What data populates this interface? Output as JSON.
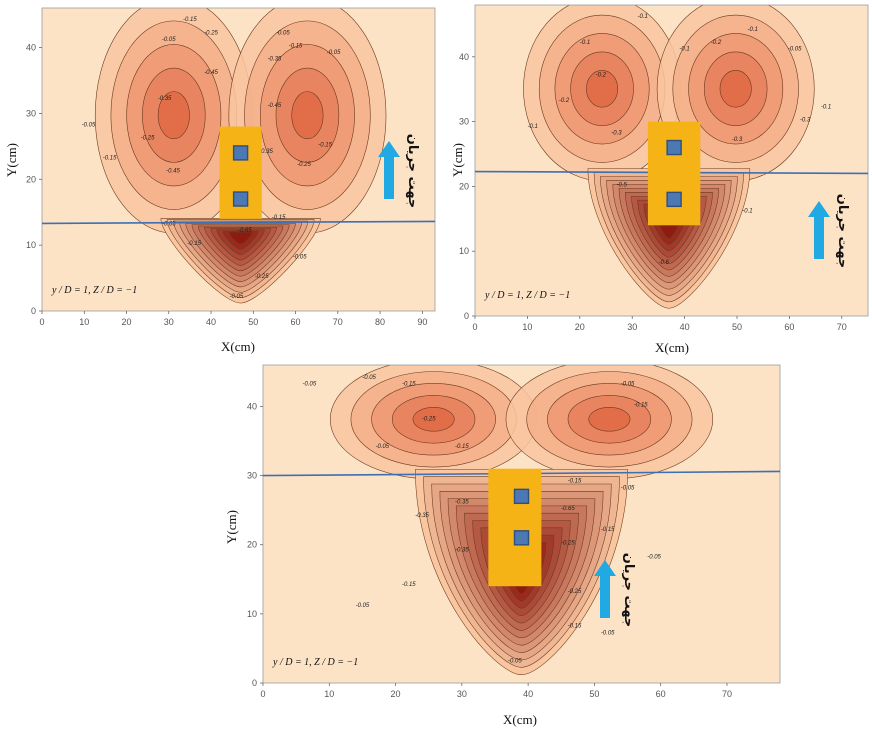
{
  "colors": {
    "background": "#fde3c6",
    "contour_line": "#6a3a1e",
    "level_line": "#3d6fb3",
    "pier": "#f6b316",
    "pier_square": "#4c78b4",
    "arrow": "#21a9e3",
    "scale_light": "#f9c6a0",
    "scale_dark": "#8e1b0f"
  },
  "chart_data": [
    {
      "type": "contour",
      "xlabel": "X(cm)",
      "ylabel": "Y(cm)",
      "xlim": [
        0,
        93
      ],
      "ylim": [
        0,
        46
      ],
      "xticks": [
        "0",
        "10",
        "20",
        "30",
        "40",
        "50",
        "60",
        "70",
        "80",
        "90"
      ],
      "yticks": [
        "0",
        "10",
        "20",
        "30",
        "40"
      ],
      "annotation": "y / D = 1, Z / D = −1",
      "flow_label": "جهت جریان",
      "level_line_y": [
        13.3,
        13.6
      ],
      "pier": {
        "x": [
          42,
          52
        ],
        "y": [
          14,
          28
        ]
      },
      "squares": [
        [
          47,
          24
        ],
        [
          47,
          17
        ]
      ],
      "deep_center": [
        47,
        11
      ],
      "contour_labels": [
        {
          "text": "-0.05",
          "x": 11,
          "y": 28
        },
        {
          "text": "-0.15",
          "x": 16,
          "y": 23
        },
        {
          "text": "-0.25",
          "x": 25,
          "y": 26
        },
        {
          "text": "-0.35",
          "x": 29,
          "y": 32
        },
        {
          "text": "-0.25",
          "x": 40,
          "y": 42
        },
        {
          "text": "-0.05",
          "x": 30,
          "y": 41
        },
        {
          "text": "-0.15",
          "x": 35,
          "y": 44
        },
        {
          "text": "-0.35",
          "x": 55,
          "y": 38
        },
        {
          "text": "-0.45",
          "x": 40,
          "y": 36
        },
        {
          "text": "-0.45",
          "x": 55,
          "y": 31
        },
        {
          "text": "-0.35",
          "x": 53,
          "y": 24
        },
        {
          "text": "-0.45",
          "x": 31,
          "y": 21
        },
        {
          "text": "-0.25",
          "x": 62,
          "y": 22
        },
        {
          "text": "-0.15",
          "x": 67,
          "y": 25
        },
        {
          "text": "-0.05",
          "x": 57,
          "y": 42
        },
        {
          "text": "-0.15",
          "x": 60,
          "y": 40
        },
        {
          "text": "-0.05",
          "x": 69,
          "y": 39
        },
        {
          "text": "-0.15",
          "x": 56,
          "y": 14
        },
        {
          "text": "-0.05",
          "x": 30,
          "y": 13
        },
        {
          "text": "-0.15",
          "x": 36,
          "y": 10
        },
        {
          "text": "-0.65",
          "x": 48,
          "y": 12
        },
        {
          "text": "-0.05",
          "x": 61,
          "y": 8
        },
        {
          "text": "-0.25",
          "x": 52,
          "y": 5
        },
        {
          "text": "-0.05",
          "x": 46,
          "y": 2
        }
      ]
    },
    {
      "type": "contour",
      "xlabel": "X(cm)",
      "ylabel": "Y(cm)",
      "xlim": [
        0,
        75
      ],
      "ylim": [
        0,
        48
      ],
      "xticks": [
        "0",
        "10",
        "20",
        "30",
        "40",
        "50",
        "60",
        "70"
      ],
      "yticks": [
        "0",
        "10",
        "20",
        "30",
        "40"
      ],
      "annotation": "y / D = 1, Z / D = −1",
      "flow_label": "جهت جریان",
      "level_line_y": [
        22.3,
        22.0
      ],
      "pier": {
        "x": [
          33,
          43
        ],
        "y": [
          14,
          30
        ]
      },
      "squares": [
        [
          38,
          26
        ],
        [
          38,
          18
        ]
      ],
      "deep_center": [
        37,
        13
      ],
      "contour_labels": [
        {
          "text": "-0.1",
          "x": 11,
          "y": 29
        },
        {
          "text": "-0.2",
          "x": 17,
          "y": 33
        },
        {
          "text": "-0.1",
          "x": 21,
          "y": 42
        },
        {
          "text": "-0.2",
          "x": 24,
          "y": 37
        },
        {
          "text": "-0.3",
          "x": 27,
          "y": 28
        },
        {
          "text": "-0.1",
          "x": 32,
          "y": 46
        },
        {
          "text": "-0.1",
          "x": 40,
          "y": 41
        },
        {
          "text": "-0.2",
          "x": 46,
          "y": 42
        },
        {
          "text": "-0.1",
          "x": 53,
          "y": 44
        },
        {
          "text": "-0.05",
          "x": 61,
          "y": 41
        },
        {
          "text": "-0.1",
          "x": 67,
          "y": 32
        },
        {
          "text": "-0.3",
          "x": 63,
          "y": 30
        },
        {
          "text": "-0.3",
          "x": 50,
          "y": 27
        },
        {
          "text": "-0.1",
          "x": 52,
          "y": 16
        },
        {
          "text": "-0.6",
          "x": 36,
          "y": 8
        },
        {
          "text": "-0.5",
          "x": 28,
          "y": 20
        }
      ]
    },
    {
      "type": "contour",
      "xlabel": "X(cm)",
      "ylabel": "Y(cm)",
      "xlim": [
        0,
        78
      ],
      "ylim": [
        0,
        46
      ],
      "xticks": [
        "0",
        "10",
        "20",
        "30",
        "40",
        "50",
        "60",
        "70"
      ],
      "yticks": [
        "0",
        "10",
        "20",
        "30",
        "40"
      ],
      "annotation": "y / D = 1, Z / D = −1",
      "flow_label": "جهت جریان",
      "level_line_y": [
        30.0,
        30.6
      ],
      "pier": {
        "x": [
          34,
          42
        ],
        "y": [
          14,
          31
        ]
      },
      "squares": [
        [
          39,
          27
        ],
        [
          39,
          21
        ]
      ],
      "deep_center": [
        39,
        14
      ],
      "contour_labels": [
        {
          "text": "-0.05",
          "x": 7,
          "y": 43
        },
        {
          "text": "-0.05",
          "x": 16,
          "y": 44
        },
        {
          "text": "-0.15",
          "x": 22,
          "y": 43
        },
        {
          "text": "-0.25",
          "x": 25,
          "y": 38
        },
        {
          "text": "-0.15",
          "x": 30,
          "y": 34
        },
        {
          "text": "-0.05",
          "x": 18,
          "y": 34
        },
        {
          "text": "-0.05",
          "x": 55,
          "y": 43
        },
        {
          "text": "-0.15",
          "x": 57,
          "y": 40
        },
        {
          "text": "-0.15",
          "x": 47,
          "y": 29
        },
        {
          "text": "-0.15",
          "x": 37,
          "y": 29
        },
        {
          "text": "-0.35",
          "x": 30,
          "y": 26
        },
        {
          "text": "-0.35",
          "x": 24,
          "y": 24
        },
        {
          "text": "-0.65",
          "x": 46,
          "y": 25
        },
        {
          "text": "-0.25",
          "x": 46,
          "y": 20
        },
        {
          "text": "-0.15",
          "x": 52,
          "y": 22
        },
        {
          "text": "-0.05",
          "x": 55,
          "y": 28
        },
        {
          "text": "-0.05",
          "x": 59,
          "y": 18
        },
        {
          "text": "-0.35",
          "x": 30,
          "y": 19
        },
        {
          "text": "-0.15",
          "x": 22,
          "y": 14
        },
        {
          "text": "-0.05",
          "x": 15,
          "y": 11
        },
        {
          "text": "-0.25",
          "x": 47,
          "y": 13
        },
        {
          "text": "-0.15",
          "x": 47,
          "y": 8
        },
        {
          "text": "-0.05",
          "x": 52,
          "y": 7
        },
        {
          "text": "-0.05",
          "x": 38,
          "y": 3
        }
      ]
    }
  ]
}
